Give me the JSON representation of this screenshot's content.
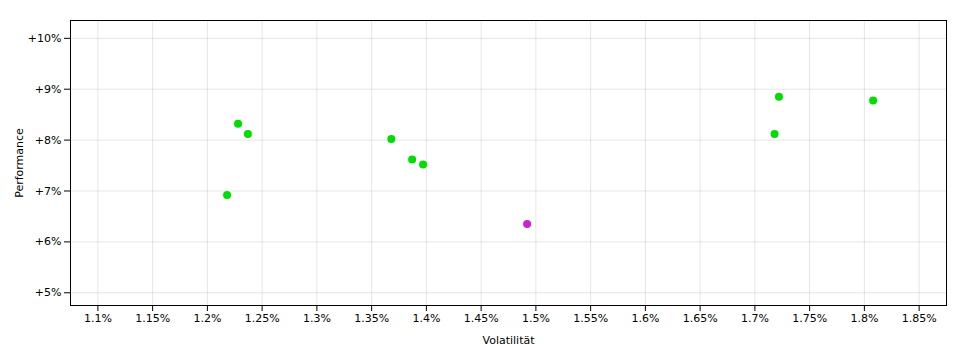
{
  "chart_data": {
    "type": "scatter",
    "x_label": "Volatilität",
    "y_label": "Performance",
    "x": [
      1.228,
      1.237,
      1.218,
      1.368,
      1.387,
      1.397,
      1.492,
      1.718,
      1.722,
      1.808
    ],
    "values": [
      8.32,
      8.12,
      6.92,
      8.02,
      7.62,
      7.52,
      6.35,
      8.12,
      8.85,
      8.78
    ],
    "colors": [
      "#00dd00",
      "#00dd00",
      "#00dd00",
      "#00dd00",
      "#00dd00",
      "#00dd00",
      "#cc22cc",
      "#00dd00",
      "#00dd00",
      "#00dd00"
    ],
    "marker": "circle",
    "xlim": [
      1.075,
      1.875
    ],
    "ylim": [
      4.75,
      10.35
    ],
    "xticks": [
      {
        "value": 1.1,
        "label": "1.1%"
      },
      {
        "value": 1.15,
        "label": "1.15%"
      },
      {
        "value": 1.2,
        "label": "1.2%"
      },
      {
        "value": 1.25,
        "label": "1.25%"
      },
      {
        "value": 1.3,
        "label": "1.3%"
      },
      {
        "value": 1.35,
        "label": "1.35%"
      },
      {
        "value": 1.4,
        "label": "1.4%"
      },
      {
        "value": 1.45,
        "label": "1.45%"
      },
      {
        "value": 1.5,
        "label": "1.5%"
      },
      {
        "value": 1.55,
        "label": "1.55%"
      },
      {
        "value": 1.6,
        "label": "1.6%"
      },
      {
        "value": 1.65,
        "label": "1.65%"
      },
      {
        "value": 1.7,
        "label": "1.7%"
      },
      {
        "value": 1.75,
        "label": "1.75%"
      },
      {
        "value": 1.8,
        "label": "1.8%"
      },
      {
        "value": 1.85,
        "label": "1.85%"
      }
    ],
    "yticks": [
      {
        "value": 5,
        "label": "+5%"
      },
      {
        "value": 6,
        "label": "+6%"
      },
      {
        "value": 7,
        "label": "+7%"
      },
      {
        "value": 8,
        "label": "+8%"
      },
      {
        "value": 9,
        "label": "+9%"
      },
      {
        "value": 10,
        "label": "+10%"
      }
    ],
    "grid": true
  }
}
